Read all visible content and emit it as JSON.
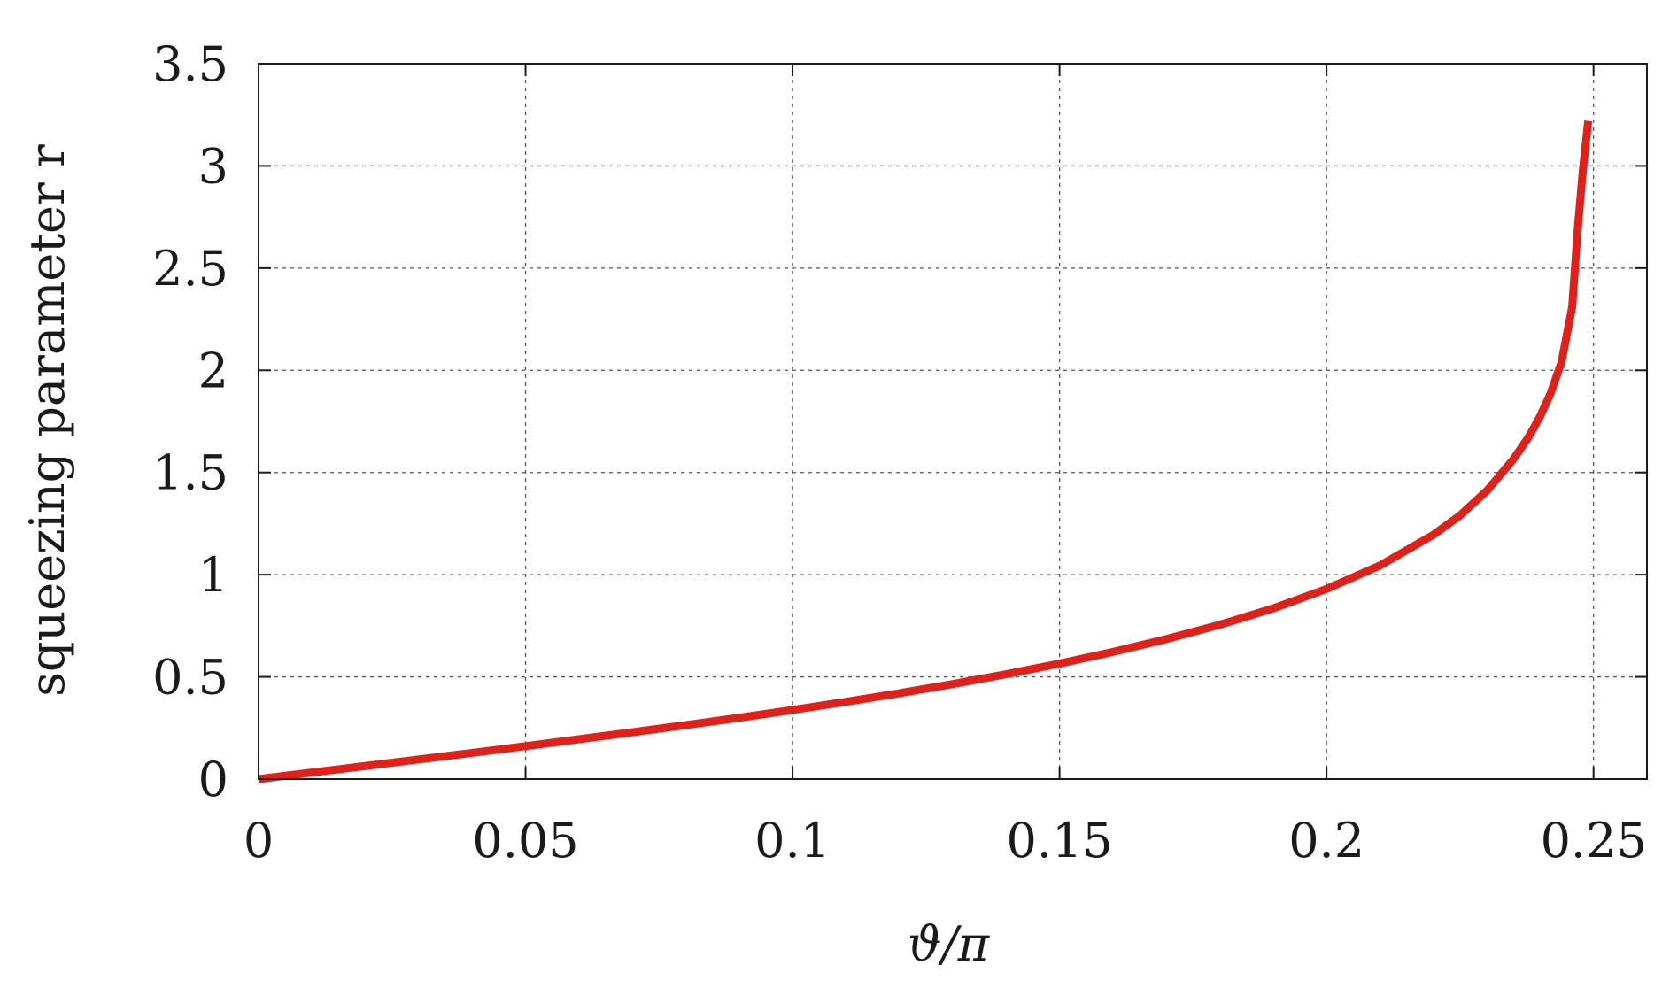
{
  "chart_data": {
    "type": "line",
    "title": "",
    "xlabel": "ϑ/π",
    "ylabel": "squeezing parameter r",
    "xlim": [
      0,
      0.26
    ],
    "ylim": [
      0,
      3.5
    ],
    "x_ticks": [
      "0",
      "0.05",
      "0.1",
      "0.15",
      "0.2",
      "0.25"
    ],
    "x_tick_values": [
      0,
      0.05,
      0.1,
      0.15,
      0.2,
      0.25
    ],
    "y_ticks": [
      "0",
      "0.5",
      "1",
      "1.5",
      "2",
      "2.5",
      "3",
      "3.5"
    ],
    "y_tick_values": [
      0,
      0.5,
      1,
      1.5,
      2,
      2.5,
      3,
      3.5
    ],
    "grid": true,
    "series": [
      {
        "color": "#e0211a",
        "x": [
          0,
          0.01,
          0.02,
          0.03,
          0.04,
          0.05,
          0.06,
          0.07,
          0.08,
          0.09,
          0.1,
          0.11,
          0.12,
          0.13,
          0.14,
          0.15,
          0.16,
          0.17,
          0.18,
          0.19,
          0.2,
          0.21,
          0.22,
          0.225,
          0.23,
          0.235,
          0.238,
          0.24,
          0.242,
          0.244,
          0.246,
          0.247,
          0.248,
          0.249
        ],
        "y": [
          0,
          0.032,
          0.064,
          0.096,
          0.128,
          0.161,
          0.195,
          0.229,
          0.264,
          0.3,
          0.338,
          0.378,
          0.42,
          0.465,
          0.513,
          0.565,
          0.622,
          0.685,
          0.755,
          0.835,
          0.93,
          1.045,
          1.195,
          1.29,
          1.41,
          1.565,
          1.68,
          1.775,
          1.89,
          2.04,
          2.31,
          2.68,
          2.98,
          3.22
        ]
      }
    ]
  }
}
